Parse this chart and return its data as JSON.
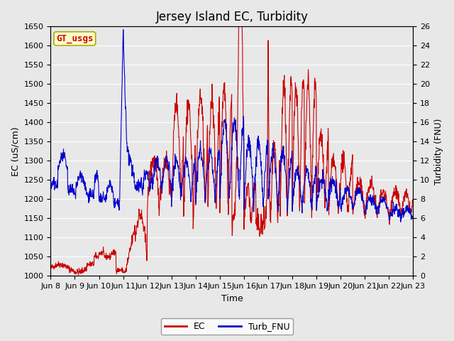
{
  "title": "Jersey Island EC, Turbidity",
  "xlabel": "Time",
  "ylabel_left": "EC (uS/cm)",
  "ylabel_right": "Turbidity (FNU)",
  "ylim_left": [
    1000,
    1650
  ],
  "ylim_right": [
    0,
    26
  ],
  "yticks_left": [
    1000,
    1050,
    1100,
    1150,
    1200,
    1250,
    1300,
    1350,
    1400,
    1450,
    1500,
    1550,
    1600,
    1650
  ],
  "yticks_right": [
    0,
    2,
    4,
    6,
    8,
    10,
    12,
    14,
    16,
    18,
    20,
    22,
    24,
    26
  ],
  "bg_color": "#e8e8e8",
  "ec_color": "#cc0000",
  "turb_color": "#0000cc",
  "legend_ec": "EC",
  "legend_turb": "Turb_FNU",
  "watermark_text": "GT_usgs",
  "watermark_color": "#cc0000",
  "watermark_bg": "#ffffcc",
  "watermark_edge": "#aaaa00",
  "xtick_positions": [
    8,
    9,
    10,
    11,
    12,
    13,
    14,
    15,
    16,
    17,
    18,
    19,
    20,
    21,
    22,
    23
  ],
  "xtick_labels": [
    "Jun 8",
    "Jun 9",
    "Jun 10",
    "Jun 11",
    "Jun 12",
    "Jun 13",
    "Jun 14",
    "Jun 15",
    "Jun 16",
    "Jun 17",
    "Jun 18",
    "Jun 19",
    "Jun 20",
    "Jun 21",
    "Jun 22",
    "Jun 23"
  ],
  "title_fontsize": 12,
  "axis_label_fontsize": 9,
  "tick_fontsize": 8,
  "legend_fontsize": 9,
  "watermark_fontsize": 9,
  "line_width": 0.8,
  "grid_color": "#ffffff",
  "grid_lw": 0.8
}
